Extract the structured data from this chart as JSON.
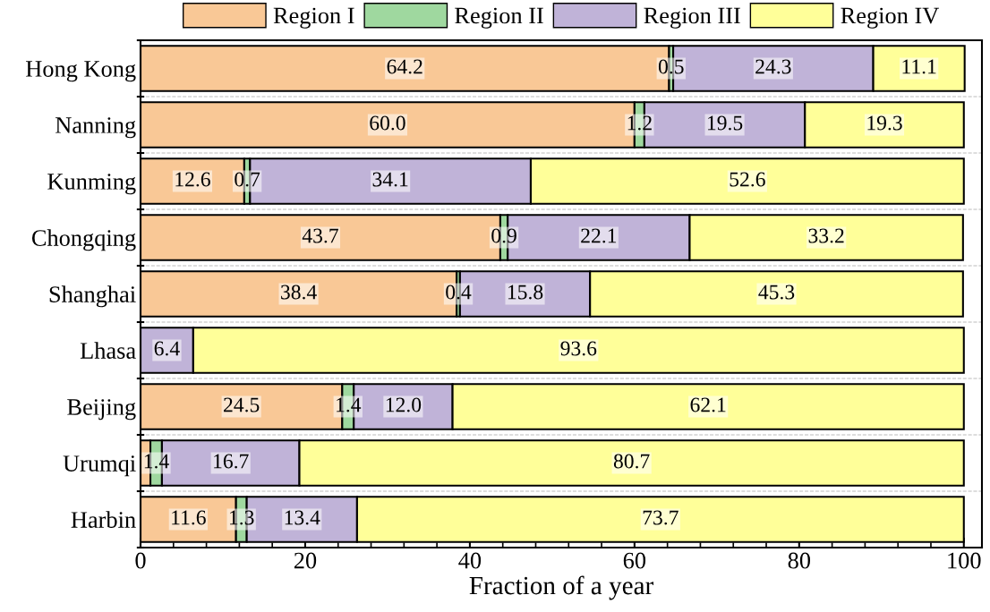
{
  "chart_data": {
    "type": "bar",
    "orientation": "horizontal",
    "stacked": true,
    "xlabel": "Fraction of a year",
    "categories": [
      "Hong Kong",
      "Nanning",
      "Kunming",
      "Chongqing",
      "Shanghai",
      "Lhasa",
      "Beijing",
      "Urumqi",
      "Harbin"
    ],
    "series": [
      {
        "name": "Region I",
        "color": "#f9c896",
        "values": [
          64.2,
          60.0,
          12.6,
          43.7,
          38.4,
          0,
          24.5,
          1.2,
          11.6
        ],
        "value_labels": [
          "64.2",
          "60.0",
          "12.6",
          "43.7",
          "38.4",
          null,
          "24.5",
          null,
          "11.6"
        ]
      },
      {
        "name": "Region II",
        "color": "#9fd89f",
        "values": [
          0.5,
          1.2,
          0.7,
          0.9,
          0.4,
          0,
          1.4,
          1.4,
          1.3
        ],
        "value_labels": [
          "0.5",
          "1.2",
          "0.7",
          "0.9",
          "0.4",
          null,
          "1.4",
          "1.4",
          "1.3"
        ]
      },
      {
        "name": "Region III",
        "color": "#c0b3d8",
        "values": [
          24.3,
          19.5,
          34.1,
          22.1,
          15.8,
          6.4,
          12.0,
          16.7,
          13.4
        ],
        "value_labels": [
          "24.3",
          "19.5",
          "34.1",
          "22.1",
          "15.8",
          "6.4",
          "12.0",
          "16.7",
          "13.4"
        ]
      },
      {
        "name": "Region IV",
        "color": "#ffff99",
        "values": [
          11.1,
          19.3,
          52.6,
          33.2,
          45.3,
          93.6,
          62.1,
          80.7,
          73.7
        ],
        "value_labels": [
          "11.1",
          "19.3",
          "52.6",
          "33.2",
          "45.3",
          "93.6",
          "62.1",
          "80.7",
          "73.7"
        ]
      }
    ],
    "xlim": [
      0,
      102.2
    ],
    "xticks": [
      0,
      20,
      40,
      60,
      80,
      100
    ],
    "grid": "y",
    "legend": "top"
  }
}
